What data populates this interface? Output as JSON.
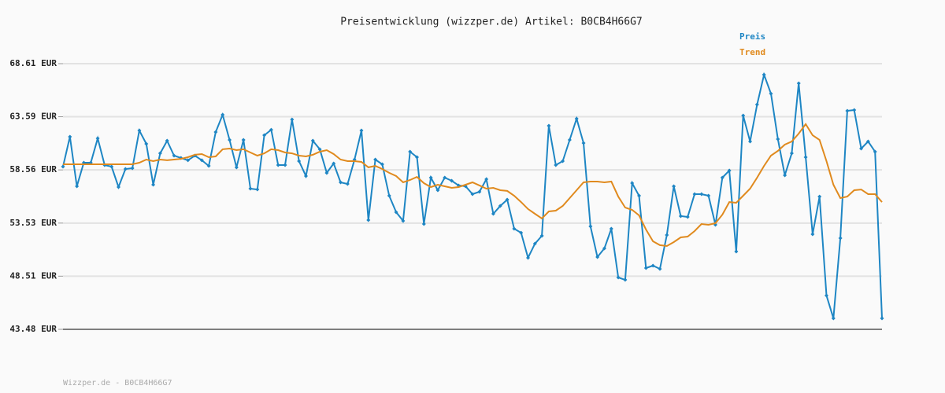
{
  "chart_data": {
    "type": "line",
    "title": "Preisentwicklung (wizzper.de) Artikel: B0CB4H66G7",
    "ylim": [
      43.48,
      68.61
    ],
    "yticks": [
      {
        "value": 43.48,
        "label": "43.48 EUR"
      },
      {
        "value": 48.51,
        "label": "48.51 EUR"
      },
      {
        "value": 53.53,
        "label": "53.53 EUR"
      },
      {
        "value": 58.56,
        "label": "58.56 EUR"
      },
      {
        "value": 63.59,
        "label": "63.59 EUR"
      },
      {
        "value": 68.61,
        "label": "68.61 EUR"
      }
    ],
    "grid": true,
    "legend": "top-right",
    "series": [
      {
        "name": "Preis",
        "color": "#1e86c4",
        "markers": true,
        "values": [
          58.87,
          61.7,
          57.01,
          59.24,
          59.24,
          61.55,
          59.02,
          58.87,
          56.94,
          58.65,
          58.72,
          62.29,
          61.03,
          57.16,
          60.13,
          61.32,
          59.91,
          59.69,
          59.47,
          59.91,
          59.47,
          58.94,
          62.14,
          63.78,
          61.4,
          58.8,
          61.4,
          56.79,
          56.71,
          61.84,
          62.36,
          59.02,
          59.02,
          63.33,
          59.39,
          57.98,
          61.32,
          60.51,
          58.28,
          59.17,
          57.38,
          57.23,
          59.54,
          62.29,
          53.81,
          59.54,
          59.09,
          56.12,
          54.56,
          53.74,
          60.28,
          59.76,
          53.44,
          57.83,
          56.64,
          57.83,
          57.53,
          57.09,
          57.01,
          56.27,
          56.49,
          57.68,
          54.41,
          55.15,
          55.75,
          53.0,
          52.62,
          50.25,
          51.58,
          52.33,
          62.74,
          59.02,
          59.39,
          61.4,
          63.41,
          61.1,
          53.22,
          50.32,
          51.14,
          53.0,
          48.39,
          48.16,
          57.31,
          56.12,
          49.28,
          49.5,
          49.2,
          52.4,
          57.01,
          54.19,
          54.11,
          56.27,
          56.27,
          56.12,
          53.37,
          57.83,
          58.5,
          50.84,
          63.7,
          61.25,
          64.74,
          67.57,
          65.78,
          61.47,
          58.05,
          60.13,
          66.75,
          59.76,
          52.48,
          56.04,
          46.68,
          44.52,
          52.1,
          64.15,
          64.22,
          60.58,
          61.25,
          60.28,
          44.52
        ]
      },
      {
        "name": "Trend",
        "color": "#e08a1e",
        "markers": false,
        "values": [
          59.09,
          59.09,
          59.09,
          59.09,
          59.09,
          59.09,
          59.09,
          59.09,
          59.09,
          59.09,
          59.09,
          59.24,
          59.54,
          59.39,
          59.54,
          59.47,
          59.54,
          59.61,
          59.76,
          59.99,
          60.06,
          59.76,
          59.84,
          60.51,
          60.58,
          60.43,
          60.51,
          60.21,
          59.91,
          60.13,
          60.51,
          60.43,
          60.21,
          60.13,
          59.91,
          59.84,
          59.99,
          60.28,
          60.43,
          60.06,
          59.54,
          59.39,
          59.39,
          59.32,
          58.8,
          58.94,
          58.65,
          58.28,
          57.98,
          57.38,
          57.61,
          57.9,
          57.31,
          56.94,
          57.16,
          57.01,
          56.86,
          56.94,
          57.16,
          57.38,
          57.09,
          56.79,
          56.86,
          56.64,
          56.57,
          56.12,
          55.52,
          54.86,
          54.41,
          53.96,
          54.63,
          54.71,
          55.15,
          55.9,
          56.64,
          57.38,
          57.46,
          57.46,
          57.38,
          57.46,
          56.04,
          55.0,
          54.78,
          54.26,
          52.92,
          51.81,
          51.44,
          51.36,
          51.73,
          52.18,
          52.25,
          52.77,
          53.44,
          53.37,
          53.52,
          54.33,
          55.52,
          55.45,
          56.12,
          56.79,
          57.83,
          58.94,
          59.91,
          60.36,
          60.95,
          61.25,
          61.99,
          62.89,
          61.84,
          61.4,
          59.39,
          57.16,
          55.9,
          56.04,
          56.64,
          56.71,
          56.27,
          56.27,
          55.52
        ]
      }
    ]
  },
  "footer": "Wizzper.de - B0CB4H66G7"
}
